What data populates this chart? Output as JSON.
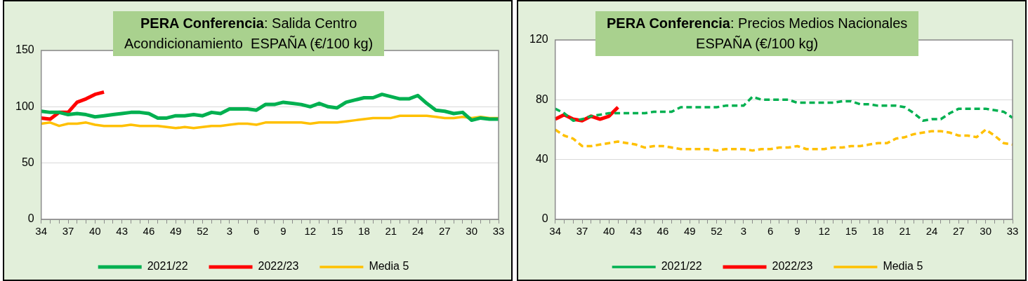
{
  "chart_data": [
    {
      "type": "line",
      "title": "PERA Conferencia: Salida Centro\nAcondicionamiento  ESPAÑA (€/100 kg)",
      "categories": [
        "34",
        null,
        null,
        "37",
        null,
        null,
        "40",
        null,
        null,
        "43",
        null,
        null,
        "46",
        null,
        null,
        "49",
        null,
        null,
        "52",
        null,
        null,
        "3",
        null,
        null,
        "6",
        null,
        null,
        "9",
        null,
        null,
        "12",
        null,
        null,
        "15",
        null,
        null,
        "18",
        null,
        null,
        "21",
        null,
        null,
        "24",
        null,
        null,
        "27",
        null,
        null,
        "30",
        null,
        null,
        "33"
      ],
      "ylim": [
        0,
        150
      ],
      "yticks": [
        0,
        50,
        100,
        150
      ],
      "grid": "y",
      "legend": "bottom",
      "marker": "none",
      "series": [
        {
          "name": "2021/22",
          "color": "#00b050",
          "line_style": "solid",
          "values": [
            96,
            95,
            95,
            93,
            94,
            93,
            91,
            92,
            93,
            94,
            95,
            95,
            94,
            90,
            90,
            92,
            92,
            93,
            92,
            95,
            94,
            98,
            98,
            98,
            97,
            102,
            102,
            104,
            103,
            102,
            100,
            103,
            100,
            99,
            104,
            106,
            108,
            108,
            111,
            109,
            107,
            107,
            110,
            103,
            97,
            96,
            94,
            95,
            88,
            90,
            89,
            89
          ]
        },
        {
          "name": "2022/23",
          "color": "#ff0000",
          "line_style": "solid",
          "values": [
            90,
            89,
            95,
            95,
            104,
            107,
            111,
            113,
            null,
            null,
            null,
            null,
            null,
            null,
            null,
            null,
            null,
            null,
            null,
            null,
            null,
            null,
            null,
            null,
            null,
            null,
            null,
            null,
            null,
            null,
            null,
            null,
            null,
            null,
            null,
            null,
            null,
            null,
            null,
            null,
            null,
            null,
            null,
            null,
            null,
            null,
            null,
            null,
            null,
            null,
            null,
            null
          ]
        },
        {
          "name": "Media 5",
          "color": "#ffc000",
          "line_style": "solid",
          "values": [
            85,
            86,
            83,
            85,
            85,
            86,
            84,
            83,
            83,
            83,
            84,
            83,
            83,
            83,
            82,
            81,
            82,
            81,
            82,
            83,
            83,
            84,
            85,
            85,
            84,
            86,
            86,
            86,
            86,
            86,
            85,
            86,
            86,
            86,
            87,
            88,
            89,
            90,
            90,
            90,
            92,
            92,
            92,
            92,
            91,
            90,
            90,
            91,
            90,
            91,
            90,
            90
          ]
        }
      ]
    },
    {
      "type": "line",
      "title": "PERA Conferencia: Precios Medios Nacionales\nESPAÑA (€/100 kg)",
      "categories": [
        "34",
        null,
        null,
        "37",
        null,
        null,
        "40",
        null,
        null,
        "43",
        null,
        null,
        "46",
        null,
        null,
        "49",
        null,
        null,
        "52",
        null,
        null,
        "3",
        null,
        null,
        "6",
        null,
        null,
        "9",
        null,
        null,
        "12",
        null,
        null,
        "15",
        null,
        null,
        "18",
        null,
        null,
        "21",
        null,
        null,
        "24",
        null,
        null,
        "27",
        null,
        null,
        "30",
        null,
        null,
        "33"
      ],
      "ylim": [
        0,
        120
      ],
      "yticks": [
        0,
        40,
        80,
        120
      ],
      "grid": "y",
      "legend": "bottom",
      "marker": "none",
      "series": [
        {
          "name": "2021/22",
          "color": "#00b050",
          "line_style": "dashed",
          "values": [
            74,
            71,
            66,
            67,
            69,
            70,
            71,
            71,
            71,
            71,
            71,
            72,
            72,
            72,
            75,
            75,
            75,
            75,
            75,
            76,
            76,
            76,
            82,
            80,
            80,
            80,
            80,
            78,
            78,
            78,
            78,
            78,
            79,
            79,
            77,
            77,
            76,
            76,
            76,
            75,
            71,
            66,
            67,
            67,
            71,
            74,
            74,
            74,
            74,
            73,
            72,
            68
          ]
        },
        {
          "name": "2022/23",
          "color": "#ff0000",
          "line_style": "solid",
          "values": [
            67,
            70,
            67,
            66,
            69,
            67,
            69,
            75,
            null,
            null,
            null,
            null,
            null,
            null,
            null,
            null,
            null,
            null,
            null,
            null,
            null,
            null,
            null,
            null,
            null,
            null,
            null,
            null,
            null,
            null,
            null,
            null,
            null,
            null,
            null,
            null,
            null,
            null,
            null,
            null,
            null,
            null,
            null,
            null,
            null,
            null,
            null,
            null,
            null,
            null,
            null,
            null
          ]
        },
        {
          "name": "Media 5",
          "color": "#ffc000",
          "line_style": "dashed",
          "values": [
            60,
            56,
            54,
            49,
            49,
            50,
            51,
            52,
            51,
            50,
            48,
            49,
            49,
            48,
            47,
            47,
            47,
            47,
            46,
            47,
            47,
            47,
            46,
            47,
            47,
            48,
            48,
            49,
            47,
            47,
            47,
            48,
            48,
            49,
            49,
            50,
            51,
            51,
            54,
            55,
            57,
            58,
            59,
            59,
            58,
            56,
            56,
            55,
            60,
            56,
            51,
            50
          ]
        }
      ]
    }
  ]
}
